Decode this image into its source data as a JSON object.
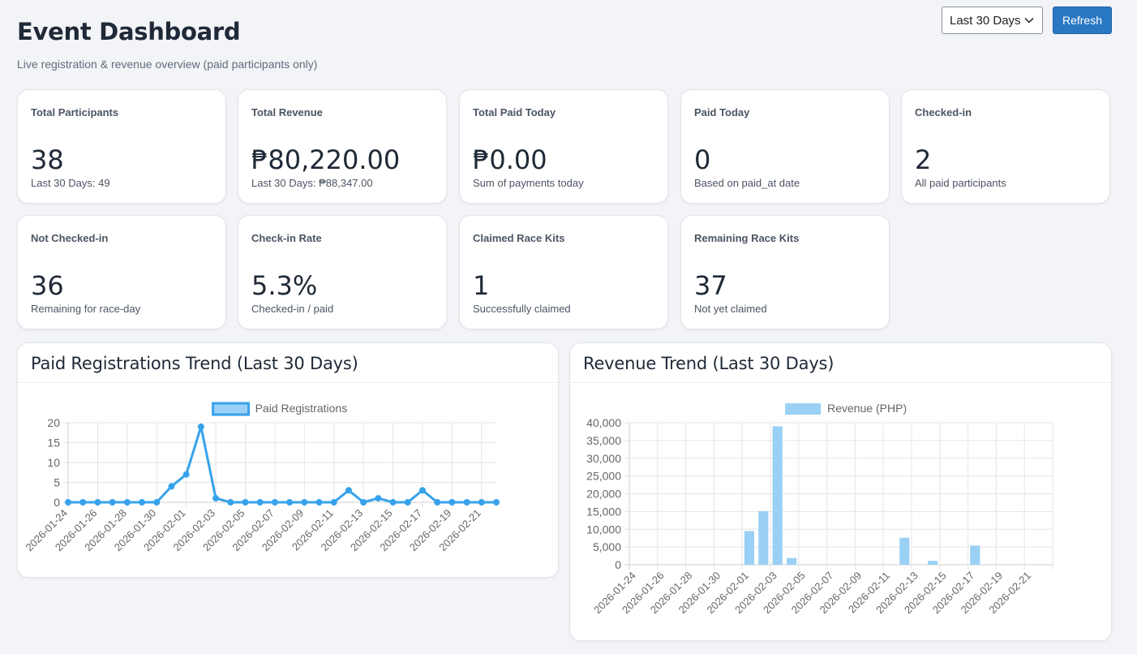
{
  "header": {
    "title": "Event Dashboard",
    "subtitle": "Live registration & revenue overview (paid participants only)",
    "range_selected": "Last 30 Days",
    "refresh_label": "Refresh"
  },
  "cards": [
    {
      "label": "Total Participants",
      "value": "38",
      "sub": "Last 30 Days: 49"
    },
    {
      "label": "Total Revenue",
      "value": "₱80,220.00",
      "sub": "Last 30 Days: ₱88,347.00"
    },
    {
      "label": "Total Paid Today",
      "value": "₱0.00",
      "sub": "Sum of payments today"
    },
    {
      "label": "Paid Today",
      "value": "0",
      "sub": "Based on paid_at date"
    },
    {
      "label": "Checked-in",
      "value": "2",
      "sub": "All paid participants"
    },
    {
      "label": "Not Checked-in",
      "value": "36",
      "sub": "Remaining for race-day"
    },
    {
      "label": "Check-in Rate",
      "value": "5.3%",
      "sub": "Checked-in / paid"
    },
    {
      "label": "Claimed Race Kits",
      "value": "1",
      "sub": "Successfully claimed"
    },
    {
      "label": "Remaining Race Kits",
      "value": "37",
      "sub": "Not yet claimed"
    }
  ],
  "panels": {
    "registrations_title": "Paid Registrations Trend (Last 30 Days)",
    "revenue_title": "Revenue Trend (Last 30 Days)"
  },
  "colors": {
    "accent": "#2a78c2",
    "line": "#36a2eb",
    "bar": "#9ad0f5"
  },
  "chart_data": [
    {
      "type": "line",
      "title": "Paid Registrations Trend (Last 30 Days)",
      "legend": "top",
      "grid": true,
      "ylim": [
        0,
        20
      ],
      "yticks": [
        "0",
        "5",
        "10",
        "15",
        "20"
      ],
      "x_tick_labels": [
        "2026-01-24",
        "2026-01-26",
        "2026-01-28",
        "2026-01-30",
        "2026-02-01",
        "2026-02-03",
        "2026-02-05",
        "2026-02-07",
        "2026-02-09",
        "2026-02-11",
        "2026-02-13",
        "2026-02-15",
        "2026-02-17",
        "2026-02-19",
        "2026-02-21"
      ],
      "x": [
        "2026-01-24",
        "2026-01-25",
        "2026-01-26",
        "2026-01-27",
        "2026-01-28",
        "2026-01-29",
        "2026-01-30",
        "2026-01-31",
        "2026-02-01",
        "2026-02-02",
        "2026-02-03",
        "2026-02-04",
        "2026-02-05",
        "2026-02-06",
        "2026-02-07",
        "2026-02-08",
        "2026-02-09",
        "2026-02-10",
        "2026-02-11",
        "2026-02-12",
        "2026-02-13",
        "2026-02-14",
        "2026-02-15",
        "2026-02-16",
        "2026-02-17",
        "2026-02-18",
        "2026-02-19",
        "2026-02-20",
        "2026-02-21",
        "2026-02-22"
      ],
      "series": [
        {
          "name": "Paid Registrations",
          "values": [
            0,
            0,
            0,
            0,
            0,
            0,
            0,
            4,
            7,
            19,
            1,
            0,
            0,
            0,
            0,
            0,
            0,
            0,
            0,
            3,
            0,
            1,
            0,
            0,
            3,
            0,
            0,
            0,
            0,
            0
          ]
        }
      ]
    },
    {
      "type": "bar",
      "title": "Revenue Trend (Last 30 Days)",
      "legend": "top",
      "grid": true,
      "ylim": [
        0,
        40000
      ],
      "yticks": [
        "0",
        "5,000",
        "10,000",
        "15,000",
        "20,000",
        "25,000",
        "30,000",
        "35,000",
        "40,000"
      ],
      "x_tick_labels": [
        "2026-01-24",
        "2026-01-26",
        "2026-01-28",
        "2026-01-30",
        "2026-02-01",
        "2026-02-03",
        "2026-02-05",
        "2026-02-07",
        "2026-02-09",
        "2026-02-11",
        "2026-02-13",
        "2026-02-15",
        "2026-02-17",
        "2026-02-19",
        "2026-02-21"
      ],
      "x": [
        "2026-01-24",
        "2026-01-25",
        "2026-01-26",
        "2026-01-27",
        "2026-01-28",
        "2026-01-29",
        "2026-01-30",
        "2026-01-31",
        "2026-02-01",
        "2026-02-02",
        "2026-02-03",
        "2026-02-04",
        "2026-02-05",
        "2026-02-06",
        "2026-02-07",
        "2026-02-08",
        "2026-02-09",
        "2026-02-10",
        "2026-02-11",
        "2026-02-12",
        "2026-02-13",
        "2026-02-14",
        "2026-02-15",
        "2026-02-16",
        "2026-02-17",
        "2026-02-18",
        "2026-02-19",
        "2026-02-20",
        "2026-02-21",
        "2026-02-22"
      ],
      "series": [
        {
          "name": "Revenue (PHP)",
          "values": [
            0,
            0,
            0,
            0,
            0,
            0,
            0,
            0,
            9500,
            15100,
            39000,
            1900,
            0,
            0,
            0,
            0,
            0,
            0,
            0,
            7600,
            0,
            1100,
            0,
            0,
            5400,
            0,
            0,
            0,
            0,
            0
          ]
        }
      ]
    }
  ]
}
